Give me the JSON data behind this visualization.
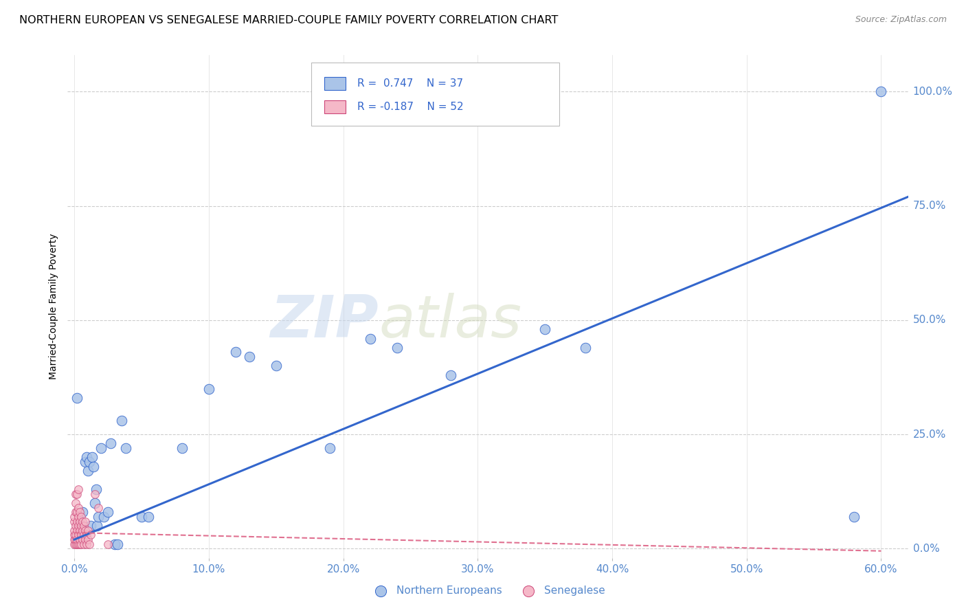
{
  "title": "NORTHERN EUROPEAN VS SENEGALESE MARRIED-COUPLE FAMILY POVERTY CORRELATION CHART",
  "source": "Source: ZipAtlas.com",
  "ylabel": "Married-Couple Family Poverty",
  "legend_blue_r": "R =  0.747",
  "legend_blue_n": "N = 37",
  "legend_pink_r": "R = -0.187",
  "legend_pink_n": "N = 52",
  "legend_label_blue": "Northern Europeans",
  "legend_label_pink": "Senegalese",
  "watermark_zip": "ZIP",
  "watermark_atlas": "atlas",
  "blue_scatter": [
    [
      0.002,
      0.33
    ],
    [
      0.005,
      0.05
    ],
    [
      0.006,
      0.08
    ],
    [
      0.008,
      0.19
    ],
    [
      0.009,
      0.2
    ],
    [
      0.01,
      0.17
    ],
    [
      0.011,
      0.19
    ],
    [
      0.012,
      0.05
    ],
    [
      0.013,
      0.2
    ],
    [
      0.014,
      0.18
    ],
    [
      0.015,
      0.1
    ],
    [
      0.016,
      0.13
    ],
    [
      0.017,
      0.05
    ],
    [
      0.018,
      0.07
    ],
    [
      0.02,
      0.22
    ],
    [
      0.022,
      0.07
    ],
    [
      0.025,
      0.08
    ],
    [
      0.027,
      0.23
    ],
    [
      0.03,
      0.01
    ],
    [
      0.032,
      0.01
    ],
    [
      0.035,
      0.28
    ],
    [
      0.038,
      0.22
    ],
    [
      0.05,
      0.07
    ],
    [
      0.055,
      0.07
    ],
    [
      0.08,
      0.22
    ],
    [
      0.1,
      0.35
    ],
    [
      0.12,
      0.43
    ],
    [
      0.13,
      0.42
    ],
    [
      0.15,
      0.4
    ],
    [
      0.19,
      0.22
    ],
    [
      0.22,
      0.46
    ],
    [
      0.24,
      0.44
    ],
    [
      0.28,
      0.38
    ],
    [
      0.35,
      0.48
    ],
    [
      0.38,
      0.44
    ],
    [
      0.58,
      0.07
    ],
    [
      0.6,
      1.0
    ]
  ],
  "pink_scatter": [
    [
      0.0,
      0.01
    ],
    [
      0.0,
      0.02
    ],
    [
      0.0,
      0.03
    ],
    [
      0.0,
      0.04
    ],
    [
      0.0,
      0.06
    ],
    [
      0.0,
      0.07
    ],
    [
      0.001,
      0.01
    ],
    [
      0.001,
      0.02
    ],
    [
      0.001,
      0.03
    ],
    [
      0.001,
      0.05
    ],
    [
      0.001,
      0.08
    ],
    [
      0.001,
      0.1
    ],
    [
      0.001,
      0.12
    ],
    [
      0.002,
      0.01
    ],
    [
      0.002,
      0.02
    ],
    [
      0.002,
      0.04
    ],
    [
      0.002,
      0.06
    ],
    [
      0.002,
      0.08
    ],
    [
      0.002,
      0.12
    ],
    [
      0.003,
      0.01
    ],
    [
      0.003,
      0.03
    ],
    [
      0.003,
      0.05
    ],
    [
      0.003,
      0.07
    ],
    [
      0.003,
      0.09
    ],
    [
      0.003,
      0.13
    ],
    [
      0.004,
      0.01
    ],
    [
      0.004,
      0.02
    ],
    [
      0.004,
      0.04
    ],
    [
      0.004,
      0.06
    ],
    [
      0.004,
      0.08
    ],
    [
      0.005,
      0.01
    ],
    [
      0.005,
      0.03
    ],
    [
      0.005,
      0.05
    ],
    [
      0.005,
      0.07
    ],
    [
      0.006,
      0.02
    ],
    [
      0.006,
      0.04
    ],
    [
      0.006,
      0.06
    ],
    [
      0.007,
      0.01
    ],
    [
      0.007,
      0.03
    ],
    [
      0.007,
      0.05
    ],
    [
      0.008,
      0.02
    ],
    [
      0.008,
      0.04
    ],
    [
      0.008,
      0.06
    ],
    [
      0.009,
      0.01
    ],
    [
      0.009,
      0.03
    ],
    [
      0.01,
      0.02
    ],
    [
      0.01,
      0.04
    ],
    [
      0.011,
      0.01
    ],
    [
      0.012,
      0.03
    ],
    [
      0.015,
      0.12
    ],
    [
      0.018,
      0.09
    ],
    [
      0.025,
      0.01
    ]
  ],
  "blue_line_x": [
    0.0,
    0.62
  ],
  "blue_line_y": [
    0.02,
    0.77
  ],
  "pink_line_x": [
    0.0,
    0.6
  ],
  "pink_line_y": [
    0.035,
    -0.005
  ],
  "xlim": [
    -0.005,
    0.62
  ],
  "ylim": [
    -0.02,
    1.08
  ],
  "xticks": [
    0.0,
    0.1,
    0.2,
    0.3,
    0.4,
    0.5,
    0.6
  ],
  "yticks": [
    0.0,
    0.25,
    0.5,
    0.75,
    1.0
  ],
  "xticklabels": [
    "0.0%",
    "10.0%",
    "20.0%",
    "30.0%",
    "40.0%",
    "50.0%",
    "60.0%"
  ],
  "yticklabels": [
    "0.0%",
    "25.0%",
    "50.0%",
    "75.0%",
    "100.0%"
  ],
  "blue_color": "#aac4e8",
  "blue_line_color": "#3366cc",
  "pink_color": "#f5b8c8",
  "pink_line_color": "#e07090",
  "pink_edge_color": "#cc4477",
  "grid_color": "#cccccc",
  "background_color": "#ffffff",
  "right_tick_color": "#5588cc",
  "title_fontsize": 11.5,
  "axis_label_fontsize": 10,
  "tick_fontsize": 11,
  "source_fontsize": 9
}
